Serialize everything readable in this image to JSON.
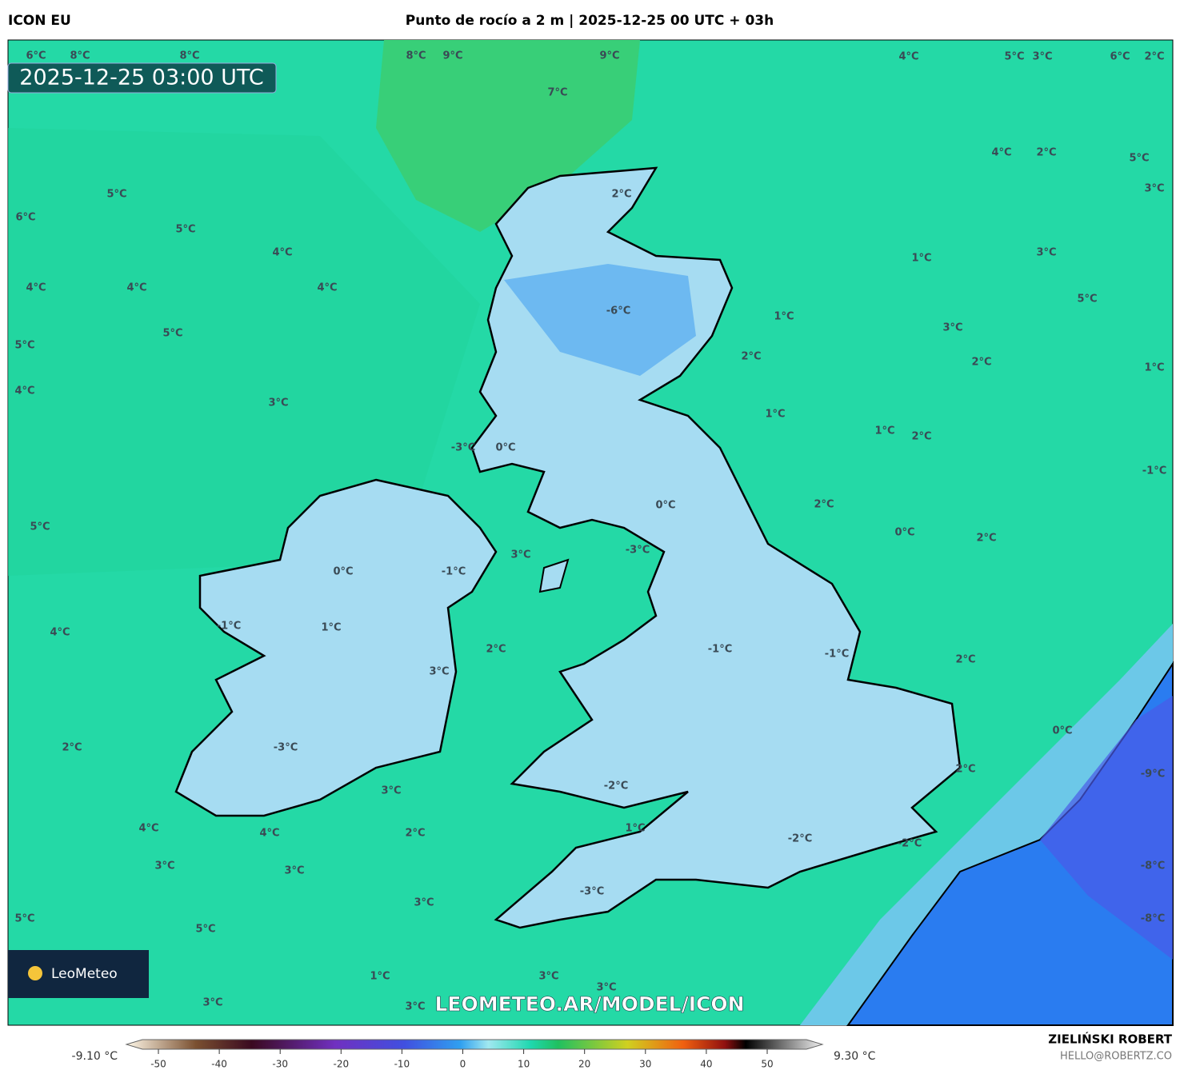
{
  "header": {
    "model": "ICON EU",
    "title": "Punto de rocío a 2 m | 2025-12-25 00 UTC + 03h"
  },
  "timestamp": "2025-12-25 03:00 UTC",
  "map_labels": [
    "6°C",
    "8°C",
    "8°C",
    "8°C",
    "9°C",
    "9°C",
    "4°C",
    "5°C",
    "3°C",
    "6°C",
    "2°C",
    "7°C",
    "5°C",
    "6°C",
    "5°C",
    "2°C",
    "4°C",
    "2°C",
    "5°C",
    "3°C",
    "4°C",
    "4°C",
    "4°C",
    "4°C",
    "1°C",
    "3°C",
    "5°C",
    "5°C",
    "5°C",
    "-6°C",
    "1°C",
    "3°C",
    "2°C",
    "2°C",
    "1°C",
    "4°C",
    "3°C",
    "1°C",
    "1°C",
    "2°C",
    "-3°C",
    "0°C",
    "-1°C",
    "0°C",
    "2°C",
    "5°C",
    "0°C",
    "2°C",
    "3°C",
    "-3°C",
    "0°C",
    "-1°C",
    "-1°C",
    "1°C",
    "4°C",
    "2°C",
    "-1°C",
    "-1°C",
    "2°C",
    "3°C",
    "0°C",
    "2°C",
    "-3°C",
    "2°C",
    "-9°C",
    "3°C",
    "-2°C",
    "4°C",
    "4°C",
    "2°C",
    "1°C",
    "-2°C",
    "-2°C",
    "-8°C",
    "3°C",
    "3°C",
    "-3°C",
    "3°C",
    "-8°C",
    "5°C",
    "5°C",
    "1°C",
    "3°C",
    "3°C",
    "3°C",
    "3°C"
  ],
  "watermark": "LEOMETEO.AR/MODEL/ICON",
  "logo": "LeoMeteo",
  "colorbar": {
    "min_label": "-9.10 °C",
    "max_label": "9.30 °C",
    "ticks": [
      -50,
      -40,
      -30,
      -20,
      -10,
      0,
      10,
      20,
      30,
      40,
      50
    ]
  },
  "credits": {
    "author": "ZIELIŃSKI ROBERT",
    "email": "HELLO@ROBERTZ.CO"
  }
}
